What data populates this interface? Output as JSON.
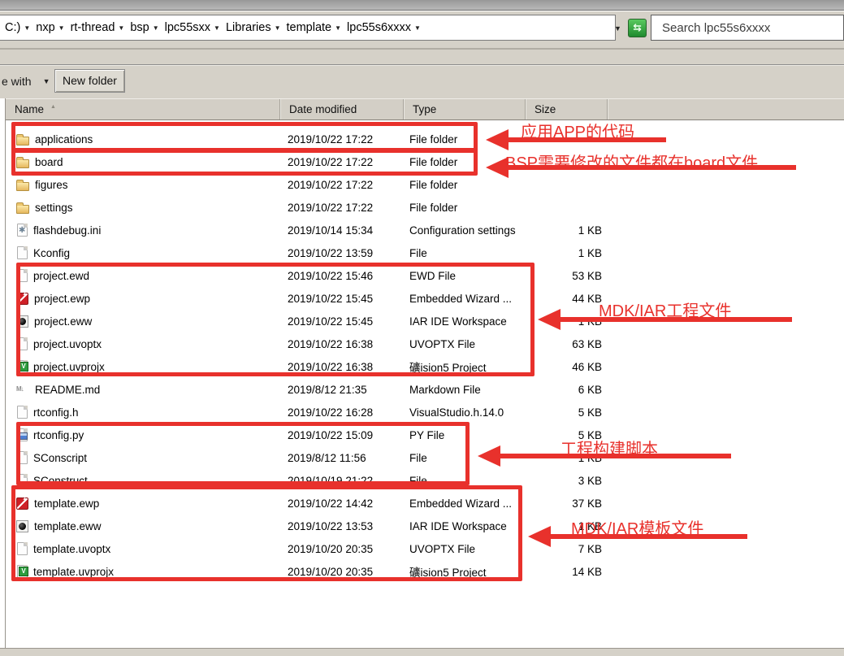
{
  "address_bar": {
    "breadcrumb": [
      "C:)",
      "nxp",
      "rt-thread",
      "bsp",
      "lpc55sxx",
      "Libraries",
      "template",
      "lpc55s6xxxx"
    ],
    "refresh_icon": "refresh-icon",
    "search_value": "Search lpc55s6xxxx"
  },
  "toolbar": {
    "share_label": "e with",
    "new_folder_label": "New folder"
  },
  "columns": {
    "name": "Name",
    "date": "Date modified",
    "type": "Type",
    "size": "Size",
    "sort_indicator": "▲"
  },
  "files": [
    {
      "name": "applications",
      "date": "2019/10/22 17:22",
      "type": "File folder",
      "size": "",
      "icon": "folder-icon"
    },
    {
      "name": "board",
      "date": "2019/10/22 17:22",
      "type": "File folder",
      "size": "",
      "icon": "folder-icon"
    },
    {
      "name": "figures",
      "date": "2019/10/22 17:22",
      "type": "File folder",
      "size": "",
      "icon": "folder-icon"
    },
    {
      "name": "settings",
      "date": "2019/10/22 17:22",
      "type": "File folder",
      "size": "",
      "icon": "folder-icon"
    },
    {
      "name": "flashdebug.ini",
      "date": "2019/10/14 15:34",
      "type": "Configuration settings",
      "size": "1 KB",
      "icon": "ini-file-icon"
    },
    {
      "name": "Kconfig",
      "date": "2019/10/22 13:59",
      "type": "File",
      "size": "1 KB",
      "icon": "blank-file-icon"
    },
    {
      "name": "project.ewd",
      "date": "2019/10/22 15:46",
      "type": "EWD File",
      "size": "53 KB",
      "icon": "blank-file-icon"
    },
    {
      "name": "project.ewp",
      "date": "2019/10/22 15:45",
      "type": "Embedded Wizard ...",
      "size": "44 KB",
      "icon": "embedded-wizard-icon"
    },
    {
      "name": "project.eww",
      "date": "2019/10/22 15:45",
      "type": "IAR IDE Workspace",
      "size": "1 KB",
      "icon": "iar-workspace-icon"
    },
    {
      "name": "project.uvoptx",
      "date": "2019/10/22 16:38",
      "type": "UVOPTX File",
      "size": "63 KB",
      "icon": "blank-file-icon"
    },
    {
      "name": "project.uvprojx",
      "date": "2019/10/22 16:38",
      "type": "礦ision5 Project",
      "size": "46 KB",
      "icon": "uvision-project-icon"
    },
    {
      "name": "README.md",
      "date": "2019/8/12 21:35",
      "type": "Markdown File",
      "size": "6 KB",
      "icon": "markdown-icon"
    },
    {
      "name": "rtconfig.h",
      "date": "2019/10/22 16:28",
      "type": "VisualStudio.h.14.0",
      "size": "5 KB",
      "icon": "blank-file-icon"
    },
    {
      "name": "rtconfig.py",
      "date": "2019/10/22 15:09",
      "type": "PY File",
      "size": "5 KB",
      "icon": "python-file-icon"
    },
    {
      "name": "SConscript",
      "date": "2019/8/12 11:56",
      "type": "File",
      "size": "1 KB",
      "icon": "blank-file-icon"
    },
    {
      "name": "SConstruct",
      "date": "2019/10/19 21:22",
      "type": "File",
      "size": "3 KB",
      "icon": "blank-file-icon"
    },
    {
      "name": "template.ewp",
      "date": "2019/10/22 14:42",
      "type": "Embedded Wizard ...",
      "size": "37 KB",
      "icon": "embedded-wizard-icon"
    },
    {
      "name": "template.eww",
      "date": "2019/10/22 13:53",
      "type": "IAR IDE Workspace",
      "size": "1 KB",
      "icon": "iar-workspace-icon"
    },
    {
      "name": "template.uvoptx",
      "date": "2019/10/20 20:35",
      "type": "UVOPTX File",
      "size": "7 KB",
      "icon": "blank-file-icon"
    },
    {
      "name": "template.uvprojx",
      "date": "2019/10/20 20:35",
      "type": "礦ision5 Project",
      "size": "14 KB",
      "icon": "uvision-project-icon"
    }
  ],
  "annotations": {
    "1": {
      "label": "应用APP的代码",
      "target": "applications"
    },
    "2": {
      "label": "BSP需要修改的文件都在board文件",
      "target": "board"
    },
    "3": {
      "label": "MDK/IAR工程文件",
      "target": "project files"
    },
    "4": {
      "label": "工程构建脚本",
      "target": "build scripts"
    },
    "5": {
      "label": "MDK/IAR模板文件",
      "target": "template files"
    }
  },
  "colors": {
    "annotation_red": "#e8312c",
    "chrome_beige": "#d5d1c8",
    "refresh_green": "#2e9c3e"
  }
}
